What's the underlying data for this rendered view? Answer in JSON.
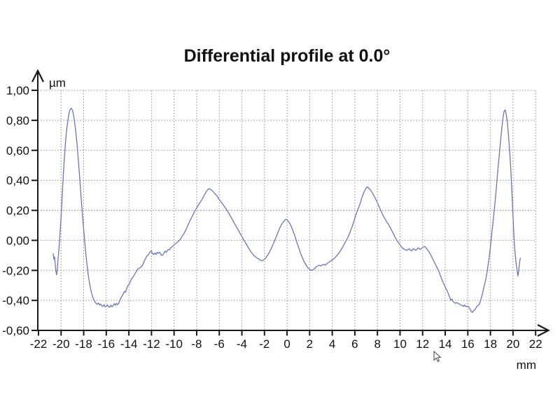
{
  "title": "Differential profile at 0.0°",
  "chart_data": {
    "type": "line",
    "title": "Differential profile at 0.0°",
    "x_unit_label": "mm",
    "y_unit_label": "µm",
    "xlim": [
      -22,
      22
    ],
    "ylim": [
      -0.6,
      1.0
    ],
    "grid": {
      "style": "dotted",
      "color": "#8c8c8c"
    },
    "legend": "none",
    "axis_color": "#1a1a1a",
    "x_ticks": [
      -22,
      -20,
      -18,
      -16,
      -14,
      -12,
      -10,
      -8,
      -6,
      -4,
      -2,
      0,
      2,
      4,
      6,
      8,
      10,
      12,
      14,
      16,
      18,
      20,
      22
    ],
    "x_tick_labels": [
      "-22",
      "-20",
      "-18",
      "-16",
      "-14",
      "-12",
      "-10",
      "-8",
      "-6",
      "-4",
      "-2",
      "0",
      "2",
      "4",
      "6",
      "8",
      "10",
      "12",
      "14",
      "16",
      "18",
      "20",
      "22"
    ],
    "y_ticks": [
      {
        "value": 1.0,
        "label": "1,00"
      },
      {
        "value": 0.8,
        "label": "0,80"
      },
      {
        "value": 0.6,
        "label": "0,60"
      },
      {
        "value": 0.4,
        "label": "0,40"
      },
      {
        "value": 0.2,
        "label": "0,20"
      },
      {
        "value": 0.0,
        "label": "0,00"
      },
      {
        "value": -0.2,
        "label": "-0,20"
      },
      {
        "value": -0.4,
        "label": "-0,40"
      },
      {
        "value": -0.6,
        "label": "-0,60"
      }
    ],
    "series": [
      {
        "name": "differential-profile",
        "color": "#6b76b4",
        "points": [
          [
            -20.7,
            -0.09
          ],
          [
            -20.64,
            -0.125
          ],
          [
            -20.58,
            -0.11
          ],
          [
            -20.52,
            -0.16
          ],
          [
            -20.46,
            -0.205
          ],
          [
            -20.4,
            -0.23
          ],
          [
            -20.34,
            -0.195
          ],
          [
            -20.28,
            -0.135
          ],
          [
            -20.2,
            -0.065
          ],
          [
            -20.1,
            0.04
          ],
          [
            -20.0,
            0.16
          ],
          [
            -19.9,
            0.3
          ],
          [
            -19.8,
            0.44
          ],
          [
            -19.7,
            0.56
          ],
          [
            -19.6,
            0.66
          ],
          [
            -19.5,
            0.74
          ],
          [
            -19.4,
            0.8
          ],
          [
            -19.3,
            0.848
          ],
          [
            -19.2,
            0.872
          ],
          [
            -19.1,
            0.88
          ],
          [
            -19.0,
            0.868
          ],
          [
            -18.9,
            0.838
          ],
          [
            -18.8,
            0.788
          ],
          [
            -18.7,
            0.725
          ],
          [
            -18.6,
            0.648
          ],
          [
            -18.5,
            0.558
          ],
          [
            -18.4,
            0.462
          ],
          [
            -18.3,
            0.362
          ],
          [
            -18.2,
            0.262
          ],
          [
            -18.1,
            0.162
          ],
          [
            -18.0,
            0.068
          ],
          [
            -17.9,
            -0.018
          ],
          [
            -17.8,
            -0.098
          ],
          [
            -17.7,
            -0.168
          ],
          [
            -17.6,
            -0.228
          ],
          [
            -17.5,
            -0.278
          ],
          [
            -17.4,
            -0.32
          ],
          [
            -17.3,
            -0.352
          ],
          [
            -17.2,
            -0.378
          ],
          [
            -17.1,
            -0.398
          ],
          [
            -17.0,
            -0.41
          ],
          [
            -16.9,
            -0.42
          ],
          [
            -16.8,
            -0.426
          ],
          [
            -16.7,
            -0.418
          ],
          [
            -16.6,
            -0.43
          ],
          [
            -16.5,
            -0.424
          ],
          [
            -16.4,
            -0.436
          ],
          [
            -16.3,
            -0.44
          ],
          [
            -16.2,
            -0.428
          ],
          [
            -16.1,
            -0.444
          ],
          [
            -16.0,
            -0.438
          ],
          [
            -15.9,
            -0.43
          ],
          [
            -15.8,
            -0.442
          ],
          [
            -15.7,
            -0.446
          ],
          [
            -15.6,
            -0.432
          ],
          [
            -15.5,
            -0.442
          ],
          [
            -15.4,
            -0.436
          ],
          [
            -15.3,
            -0.422
          ],
          [
            -15.2,
            -0.432
          ],
          [
            -15.1,
            -0.42
          ],
          [
            -15.0,
            -0.428
          ],
          [
            -14.9,
            -0.418
          ],
          [
            -14.8,
            -0.4
          ],
          [
            -14.7,
            -0.382
          ],
          [
            -14.6,
            -0.372
          ],
          [
            -14.5,
            -0.356
          ],
          [
            -14.4,
            -0.34
          ],
          [
            -14.3,
            -0.346
          ],
          [
            -14.2,
            -0.322
          ],
          [
            -14.1,
            -0.302
          ],
          [
            -14.0,
            -0.296
          ],
          [
            -13.8,
            -0.262
          ],
          [
            -13.6,
            -0.24
          ],
          [
            -13.4,
            -0.214
          ],
          [
            -13.2,
            -0.19
          ],
          [
            -13.0,
            -0.182
          ],
          [
            -12.8,
            -0.168
          ],
          [
            -12.6,
            -0.13
          ],
          [
            -12.5,
            -0.118
          ],
          [
            -12.4,
            -0.104
          ],
          [
            -12.3,
            -0.098
          ],
          [
            -12.2,
            -0.086
          ],
          [
            -12.1,
            -0.074
          ],
          [
            -12.0,
            -0.072
          ],
          [
            -11.9,
            -0.09
          ],
          [
            -11.8,
            -0.094
          ],
          [
            -11.7,
            -0.084
          ],
          [
            -11.6,
            -0.094
          ],
          [
            -11.5,
            -0.08
          ],
          [
            -11.4,
            -0.086
          ],
          [
            -11.3,
            -0.078
          ],
          [
            -11.2,
            -0.09
          ],
          [
            -11.1,
            -0.1
          ],
          [
            -11.0,
            -0.098
          ],
          [
            -10.9,
            -0.084
          ],
          [
            -10.8,
            -0.072
          ],
          [
            -10.7,
            -0.08
          ],
          [
            -10.6,
            -0.068
          ],
          [
            -10.5,
            -0.06
          ],
          [
            -10.4,
            -0.064
          ],
          [
            -10.3,
            -0.05
          ],
          [
            -10.2,
            -0.044
          ],
          [
            -10.0,
            -0.03
          ],
          [
            -9.8,
            -0.018
          ],
          [
            -9.6,
            -0.004
          ],
          [
            -9.4,
            0.012
          ],
          [
            -9.2,
            0.038
          ],
          [
            -9.0,
            0.062
          ],
          [
            -8.8,
            0.096
          ],
          [
            -8.6,
            0.13
          ],
          [
            -8.4,
            0.16
          ],
          [
            -8.2,
            0.19
          ],
          [
            -8.0,
            0.216
          ],
          [
            -7.8,
            0.24
          ],
          [
            -7.6,
            0.264
          ],
          [
            -7.4,
            0.29
          ],
          [
            -7.2,
            0.318
          ],
          [
            -7.1,
            0.33
          ],
          [
            -7.0,
            0.34
          ],
          [
            -6.9,
            0.344
          ],
          [
            -6.8,
            0.34
          ],
          [
            -6.7,
            0.336
          ],
          [
            -6.6,
            0.33
          ],
          [
            -6.4,
            0.312
          ],
          [
            -6.2,
            0.296
          ],
          [
            -6.0,
            0.272
          ],
          [
            -5.8,
            0.252
          ],
          [
            -5.6,
            0.232
          ],
          [
            -5.4,
            0.21
          ],
          [
            -5.2,
            0.186
          ],
          [
            -5.0,
            0.16
          ],
          [
            -4.8,
            0.132
          ],
          [
            -4.6,
            0.106
          ],
          [
            -4.4,
            0.08
          ],
          [
            -4.2,
            0.052
          ],
          [
            -4.0,
            0.026
          ],
          [
            -3.8,
            0.0
          ],
          [
            -3.6,
            -0.026
          ],
          [
            -3.4,
            -0.052
          ],
          [
            -3.2,
            -0.076
          ],
          [
            -3.0,
            -0.096
          ],
          [
            -2.8,
            -0.11
          ],
          [
            -2.6,
            -0.12
          ],
          [
            -2.4,
            -0.13
          ],
          [
            -2.2,
            -0.136
          ],
          [
            -2.0,
            -0.126
          ],
          [
            -1.8,
            -0.108
          ],
          [
            -1.6,
            -0.084
          ],
          [
            -1.4,
            -0.054
          ],
          [
            -1.2,
            -0.02
          ],
          [
            -1.0,
            0.016
          ],
          [
            -0.8,
            0.054
          ],
          [
            -0.6,
            0.09
          ],
          [
            -0.4,
            0.116
          ],
          [
            -0.2,
            0.134
          ],
          [
            -0.1,
            0.14
          ],
          [
            0.0,
            0.138
          ],
          [
            0.2,
            0.118
          ],
          [
            0.4,
            0.088
          ],
          [
            0.6,
            0.048
          ],
          [
            0.8,
            0.004
          ],
          [
            1.0,
            -0.042
          ],
          [
            1.2,
            -0.086
          ],
          [
            1.4,
            -0.124
          ],
          [
            1.6,
            -0.154
          ],
          [
            1.8,
            -0.178
          ],
          [
            2.0,
            -0.194
          ],
          [
            2.2,
            -0.2
          ],
          [
            2.4,
            -0.19
          ],
          [
            2.6,
            -0.176
          ],
          [
            2.8,
            -0.166
          ],
          [
            3.0,
            -0.17
          ],
          [
            3.2,
            -0.16
          ],
          [
            3.4,
            -0.164
          ],
          [
            3.6,
            -0.15
          ],
          [
            3.8,
            -0.14
          ],
          [
            4.0,
            -0.13
          ],
          [
            4.2,
            -0.118
          ],
          [
            4.4,
            -0.102
          ],
          [
            4.6,
            -0.084
          ],
          [
            4.8,
            -0.06
          ],
          [
            5.0,
            -0.034
          ],
          [
            5.2,
            -0.006
          ],
          [
            5.4,
            0.022
          ],
          [
            5.6,
            0.06
          ],
          [
            5.8,
            0.1
          ],
          [
            6.0,
            0.148
          ],
          [
            6.2,
            0.192
          ],
          [
            6.3,
            0.212
          ],
          [
            6.4,
            0.232
          ],
          [
            6.5,
            0.252
          ],
          [
            6.6,
            0.28
          ],
          [
            6.8,
            0.32
          ],
          [
            7.0,
            0.35
          ],
          [
            7.1,
            0.356
          ],
          [
            7.2,
            0.35
          ],
          [
            7.4,
            0.336
          ],
          [
            7.6,
            0.31
          ],
          [
            7.8,
            0.282
          ],
          [
            8.0,
            0.25
          ],
          [
            8.2,
            0.216
          ],
          [
            8.4,
            0.182
          ],
          [
            8.6,
            0.152
          ],
          [
            8.8,
            0.126
          ],
          [
            9.0,
            0.104
          ],
          [
            9.2,
            0.076
          ],
          [
            9.4,
            0.046
          ],
          [
            9.6,
            0.016
          ],
          [
            9.8,
            -0.01
          ],
          [
            10.0,
            -0.03
          ],
          [
            10.2,
            -0.05
          ],
          [
            10.4,
            -0.06
          ],
          [
            10.6,
            -0.066
          ],
          [
            10.8,
            -0.056
          ],
          [
            11.0,
            -0.07
          ],
          [
            11.2,
            -0.056
          ],
          [
            11.4,
            -0.066
          ],
          [
            11.6,
            -0.05
          ],
          [
            11.8,
            -0.06
          ],
          [
            12.0,
            -0.046
          ],
          [
            12.2,
            -0.04
          ],
          [
            12.3,
            -0.05
          ],
          [
            12.4,
            -0.06
          ],
          [
            12.6,
            -0.08
          ],
          [
            12.8,
            -0.11
          ],
          [
            13.0,
            -0.14
          ],
          [
            13.2,
            -0.17
          ],
          [
            13.4,
            -0.2
          ],
          [
            13.6,
            -0.24
          ],
          [
            13.8,
            -0.278
          ],
          [
            14.0,
            -0.31
          ],
          [
            14.2,
            -0.342
          ],
          [
            14.4,
            -0.38
          ],
          [
            14.5,
            -0.4
          ],
          [
            14.6,
            -0.39
          ],
          [
            14.7,
            -0.408
          ],
          [
            14.9,
            -0.42
          ],
          [
            15.0,
            -0.414
          ],
          [
            15.2,
            -0.422
          ],
          [
            15.4,
            -0.43
          ],
          [
            15.6,
            -0.44
          ],
          [
            15.7,
            -0.43
          ],
          [
            15.8,
            -0.44
          ],
          [
            16.0,
            -0.44
          ],
          [
            16.1,
            -0.446
          ],
          [
            16.2,
            -0.458
          ],
          [
            16.3,
            -0.474
          ],
          [
            16.4,
            -0.48
          ],
          [
            16.5,
            -0.47
          ],
          [
            16.6,
            -0.464
          ],
          [
            16.7,
            -0.454
          ],
          [
            16.8,
            -0.44
          ],
          [
            17.0,
            -0.428
          ],
          [
            17.1,
            -0.408
          ],
          [
            17.2,
            -0.382
          ],
          [
            17.3,
            -0.354
          ],
          [
            17.4,
            -0.32
          ],
          [
            17.5,
            -0.29
          ],
          [
            17.6,
            -0.258
          ],
          [
            17.7,
            -0.212
          ],
          [
            17.8,
            -0.16
          ],
          [
            17.9,
            -0.108
          ],
          [
            18.0,
            -0.04
          ],
          [
            18.1,
            0.03
          ],
          [
            18.2,
            0.1
          ],
          [
            18.3,
            0.172
          ],
          [
            18.4,
            0.25
          ],
          [
            18.5,
            0.33
          ],
          [
            18.6,
            0.42
          ],
          [
            18.7,
            0.502
          ],
          [
            18.8,
            0.582
          ],
          [
            18.9,
            0.662
          ],
          [
            19.0,
            0.74
          ],
          [
            19.1,
            0.81
          ],
          [
            19.2,
            0.858
          ],
          [
            19.3,
            0.87
          ],
          [
            19.4,
            0.84
          ],
          [
            19.5,
            0.788
          ],
          [
            19.6,
            0.7
          ],
          [
            19.7,
            0.598
          ],
          [
            19.8,
            0.47
          ],
          [
            19.9,
            0.32
          ],
          [
            20.0,
            0.16
          ],
          [
            20.1,
            0.0
          ],
          [
            20.2,
            -0.1
          ],
          [
            20.3,
            -0.17
          ],
          [
            20.4,
            -0.22
          ],
          [
            20.45,
            -0.238
          ],
          [
            20.5,
            -0.2
          ],
          [
            20.56,
            -0.158
          ],
          [
            20.62,
            -0.128
          ],
          [
            20.66,
            -0.118
          ]
        ]
      }
    ]
  },
  "icons": {
    "mouse_cursor": "pointer-arrow",
    "y_axis_arrow": "arrow-up",
    "x_axis_arrow": "arrow-right"
  }
}
